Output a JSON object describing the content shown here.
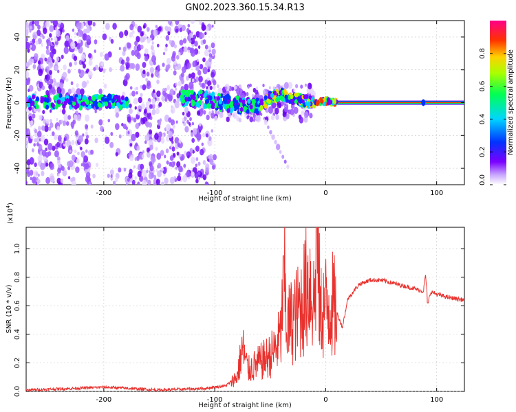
{
  "title": "GN02.2023.360.15.34.R13",
  "chart_data": [
    {
      "type": "heatmap",
      "xlabel": "Height of straight line (km)",
      "ylabel": "Frequency (Hz)",
      "xlim": [
        -270,
        125
      ],
      "ylim": [
        -50,
        50
      ],
      "xticks": [
        -200,
        -100,
        0,
        100
      ],
      "yticks": [
        -40,
        -20,
        0,
        20,
        40
      ],
      "colorbar": {
        "label": "Normalized spectral amplitude",
        "range": [
          0,
          1
        ],
        "ticks": [
          0.0,
          0.2,
          0.4,
          0.6,
          0.8
        ],
        "colors": [
          "#ffffff",
          "#7a00ff",
          "#0033ff",
          "#00d5ff",
          "#00ff55",
          "#aaff00",
          "#ffd000",
          "#ff3300",
          "#ff0088"
        ]
      },
      "grid": true,
      "ridge": {
        "x": [
          -265,
          -250,
          -235,
          -220,
          -200,
          -185,
          -130,
          -110,
          -95,
          -80,
          -70,
          -60,
          -50,
          -40,
          -30,
          -20,
          -10,
          0,
          10,
          50,
          88,
          100,
          125
        ],
        "y": [
          1,
          0,
          1,
          0,
          1,
          0,
          3,
          2,
          0,
          -1,
          -2,
          -3,
          3,
          5,
          3,
          1,
          0,
          1,
          0,
          0,
          0,
          0,
          0
        ]
      },
      "regions": [
        {
          "name": "dense-scatter",
          "x": [
            -270,
            -100
          ],
          "y": [
            -50,
            50
          ]
        },
        {
          "name": "constant-line",
          "x": [
            10,
            125
          ],
          "y": [
            0,
            0
          ]
        }
      ]
    },
    {
      "type": "line",
      "xlabel": "Height of straight line (km)",
      "ylabel": "SNR (10 * v/v)",
      "y_multiplier": "(x10",
      "y_multiplier_exp": "4",
      "xlim": [
        -270,
        125
      ],
      "ylim": [
        0,
        1.15
      ],
      "xticks": [
        -200,
        -100,
        0,
        100
      ],
      "yticks": [
        0.0,
        0.2,
        0.4,
        0.6,
        0.8,
        1.0
      ],
      "line_color": "#e8312d",
      "grid": true,
      "series": [
        {
          "x": [
            -270,
            -230,
            -200,
            -150,
            -110,
            -90,
            -80,
            -75,
            -70,
            -60,
            -50,
            -45,
            -40,
            -38,
            -35,
            -30,
            -25,
            -20,
            -15,
            -10,
            -8,
            -5,
            0,
            5,
            10,
            15,
            20,
            30,
            40,
            50,
            60,
            70,
            80,
            88,
            90,
            92,
            95,
            100,
            110,
            125
          ],
          "y": [
            0.01,
            0.02,
            0.03,
            0.01,
            0.02,
            0.04,
            0.1,
            0.3,
            0.15,
            0.2,
            0.25,
            0.3,
            0.4,
            0.95,
            0.45,
            0.5,
            0.55,
            0.65,
            0.8,
            0.6,
            1.15,
            0.55,
            0.6,
            0.62,
            0.55,
            0.45,
            0.65,
            0.75,
            0.78,
            0.78,
            0.76,
            0.74,
            0.72,
            0.7,
            0.82,
            0.62,
            0.7,
            0.68,
            0.66,
            0.64
          ]
        }
      ]
    }
  ]
}
